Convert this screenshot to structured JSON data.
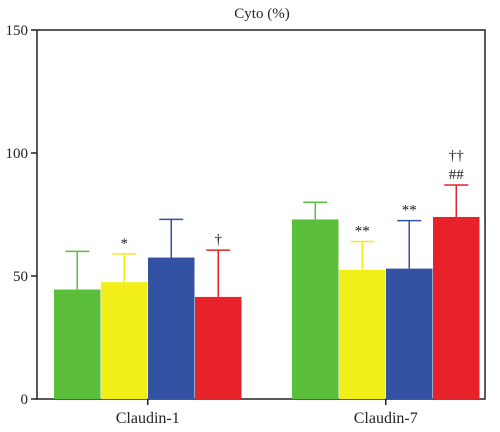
{
  "chart_data": {
    "type": "bar",
    "title": "Cyto (%)",
    "xlabel": "",
    "ylabel": "",
    "ylim": [
      0,
      150
    ],
    "yticks": [
      0,
      50,
      100,
      150
    ],
    "grid": false,
    "legend": "none",
    "categories": [
      "Claudin-1",
      "Claudin-7"
    ],
    "series": [
      {
        "color": "#5cbf3c",
        "values": [
          44.5,
          73
        ],
        "errors": [
          15.5,
          7
        ]
      },
      {
        "color": "#f2ee1a",
        "values": [
          47.5,
          52.5
        ],
        "errors": [
          11.5,
          11.5
        ]
      },
      {
        "color": "#3452a3",
        "values": [
          57.5,
          53
        ],
        "errors": [
          15.5,
          19.5
        ]
      },
      {
        "color": "#e8222a",
        "values": [
          41.5,
          74
        ],
        "errors": [
          19,
          13
        ]
      }
    ],
    "annotations": [
      {
        "category": 0,
        "series": 1,
        "lines": [
          "*"
        ]
      },
      {
        "category": 0,
        "series": 3,
        "lines": [
          "†"
        ]
      },
      {
        "category": 1,
        "series": 1,
        "lines": [
          "**"
        ]
      },
      {
        "category": 1,
        "series": 2,
        "lines": [
          "**"
        ]
      },
      {
        "category": 1,
        "series": 3,
        "lines": [
          "††",
          "##"
        ]
      }
    ]
  }
}
